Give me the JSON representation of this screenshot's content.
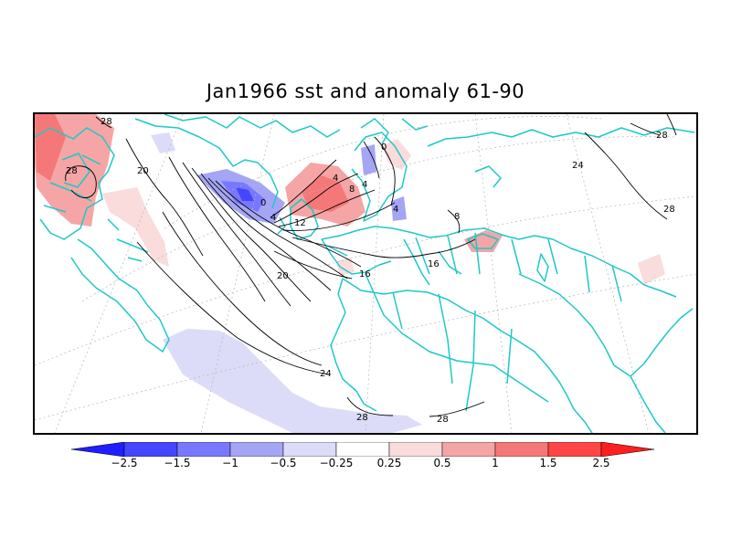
{
  "title": "Jan1966 sst and anomaly 61-90",
  "colorbar": {
    "colors": [
      "#1e1eff",
      "#4646ff",
      "#7878ff",
      "#a5a5f5",
      "#dcdcf8",
      "#ffffff",
      "#fadcdc",
      "#f5a5a5",
      "#f57878",
      "#ff4646",
      "#ff1e1e"
    ],
    "ticks": [
      "−2.5",
      "−1.5",
      "−1",
      "−0.5",
      "−0.25",
      "0.25",
      "0.5",
      "1",
      "1.5",
      "2.5"
    ]
  },
  "contour_labels": [
    {
      "text": "28"
    },
    {
      "text": "28"
    },
    {
      "text": "20"
    },
    {
      "text": "0"
    },
    {
      "text": "4"
    },
    {
      "text": "12"
    },
    {
      "text": "8"
    },
    {
      "text": "4"
    },
    {
      "text": "4"
    },
    {
      "text": "0"
    },
    {
      "text": "4"
    },
    {
      "text": "20"
    },
    {
      "text": "16"
    },
    {
      "text": "16"
    },
    {
      "text": "8"
    },
    {
      "text": "24"
    },
    {
      "text": "28"
    },
    {
      "text": "28"
    },
    {
      "text": "24"
    },
    {
      "text": "28"
    },
    {
      "text": "28"
    }
  ],
  "colors": {
    "coast": "#1ec8c8",
    "contour": "#000000",
    "frame": "#000000"
  }
}
